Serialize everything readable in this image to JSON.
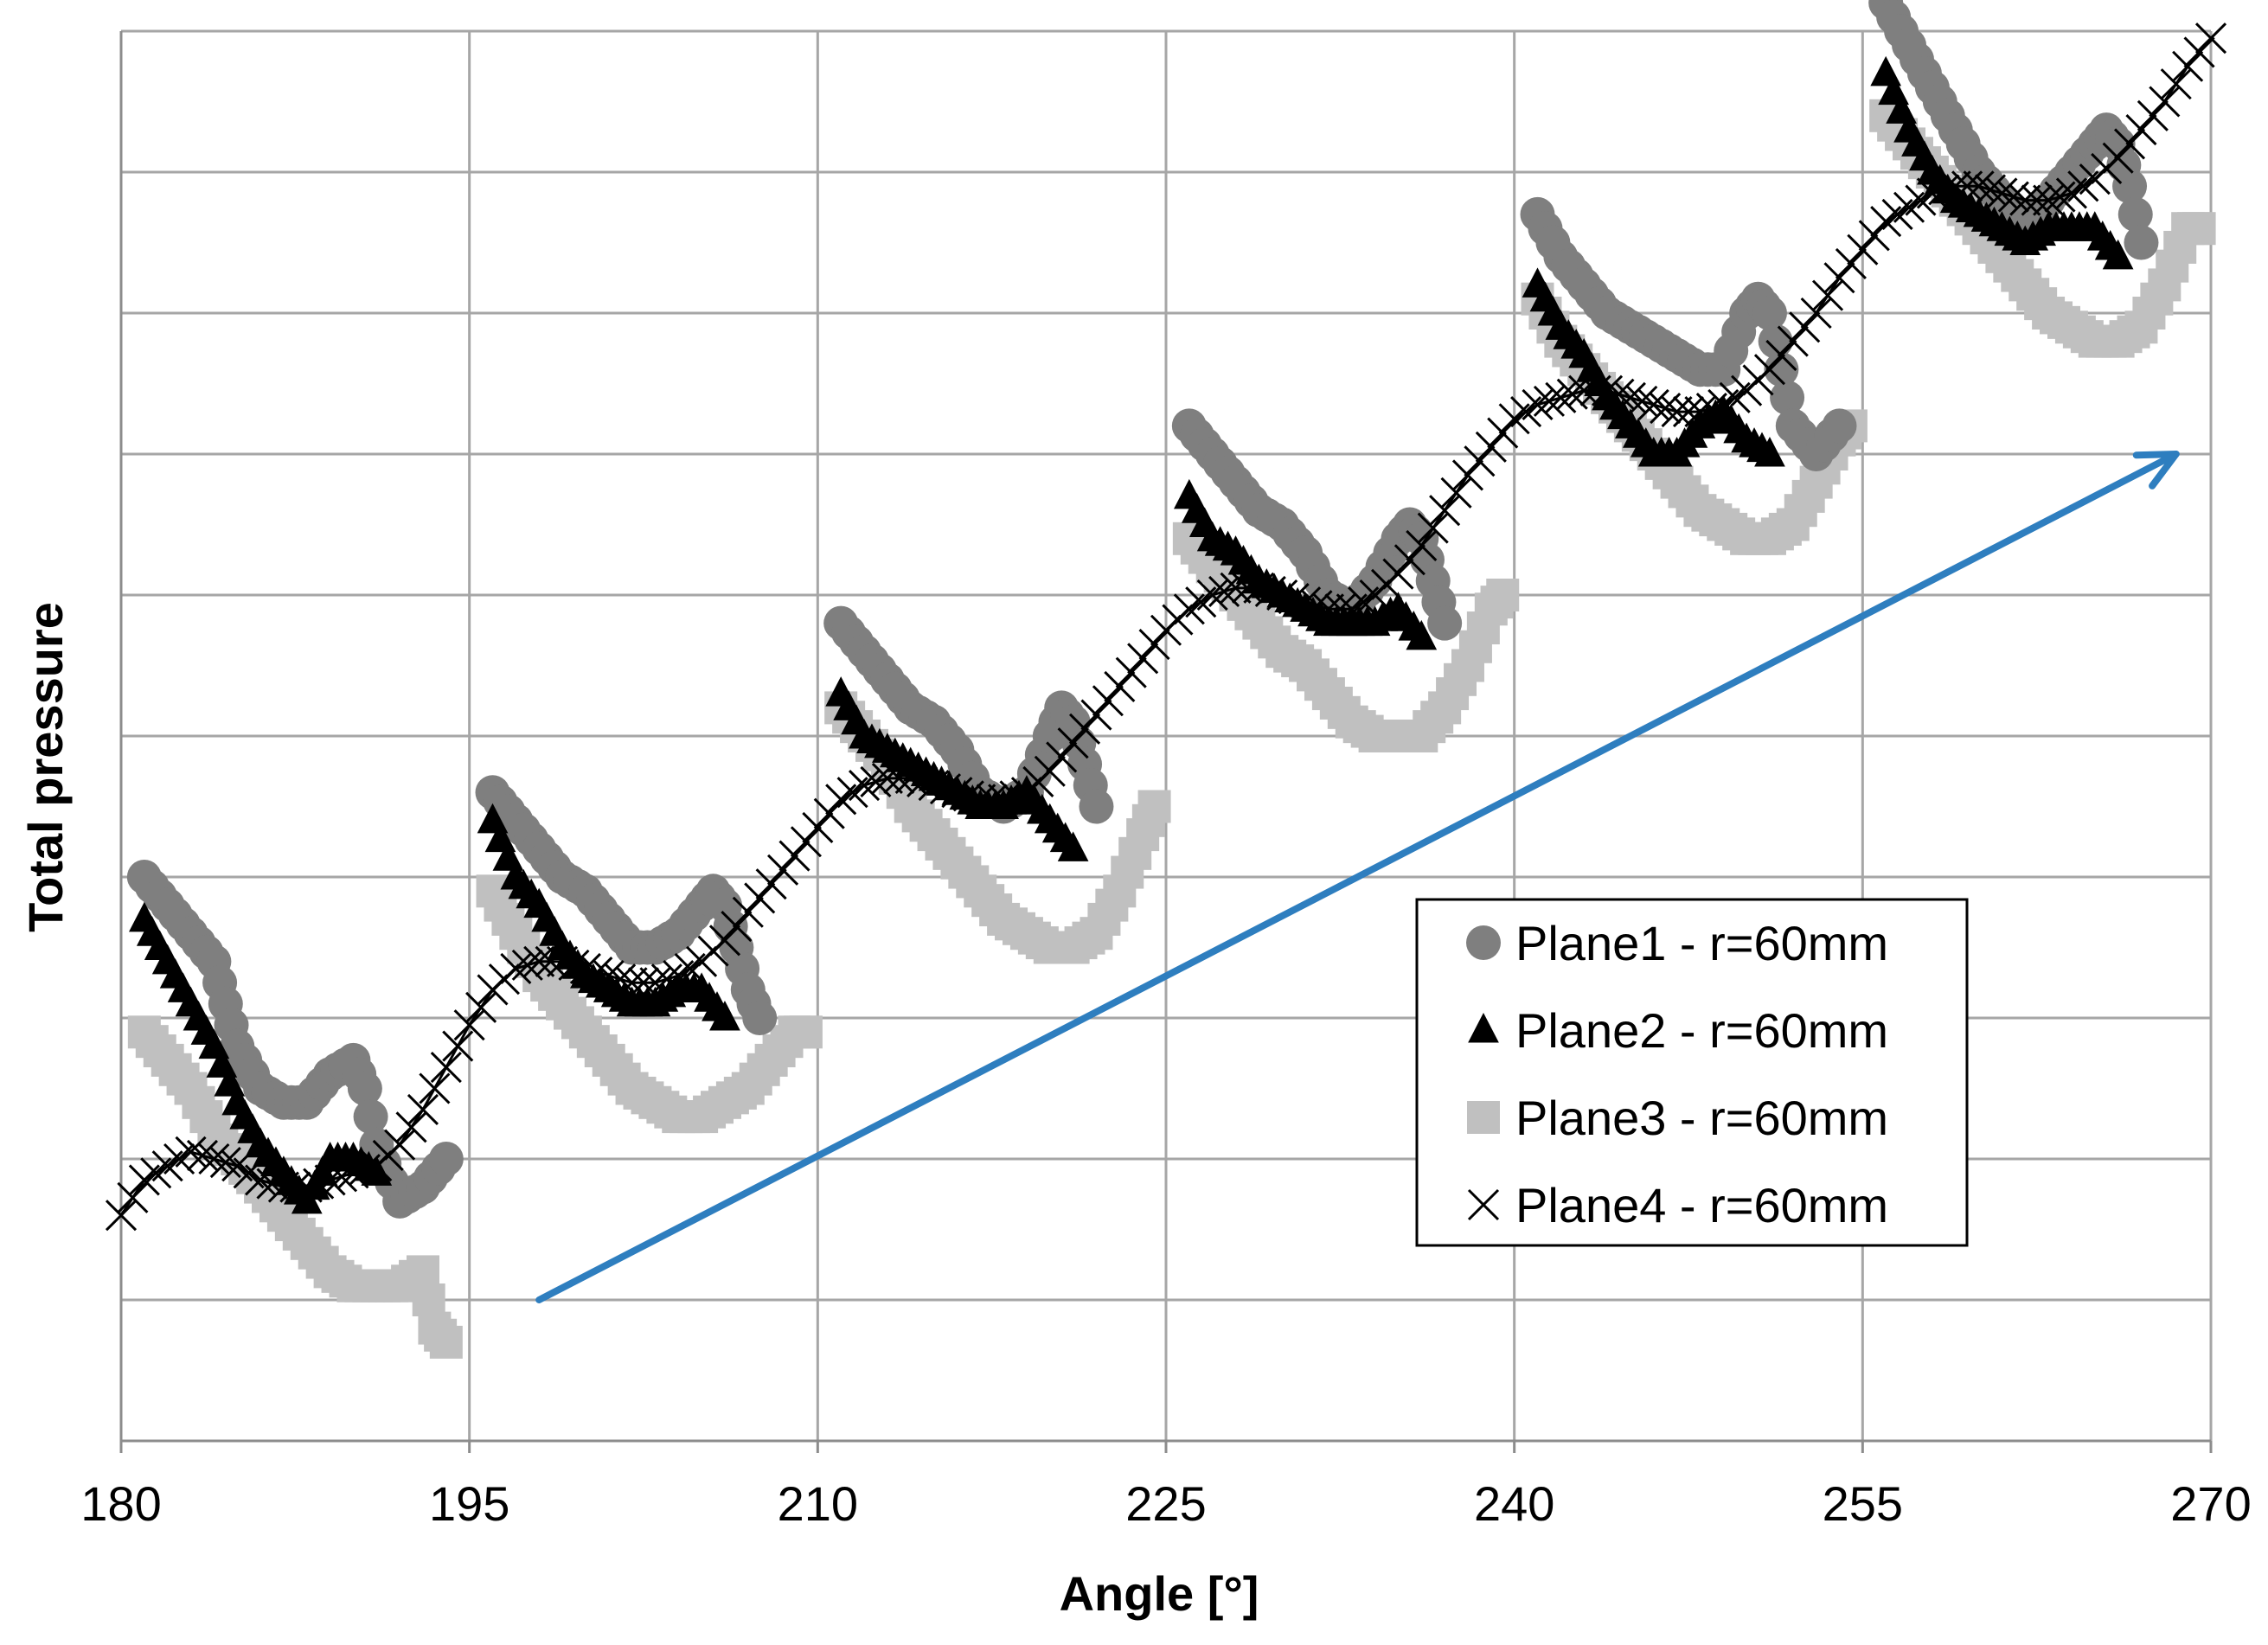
{
  "chart_data": {
    "type": "scatter",
    "title": "",
    "xlabel": "Angle [°]",
    "ylabel": "Total pressure",
    "xlim": [
      180,
      270
    ],
    "ylim": [
      0,
      10
    ],
    "xticks": [
      180,
      195,
      210,
      225,
      240,
      255,
      270
    ],
    "grid": true,
    "legend_position": "lower-right",
    "series": [
      {
        "name": "Plane1 - r=60mm",
        "marker": "circle",
        "color": "#7f7f7f",
        "segments": [
          {
            "x": [
              181,
              182,
              183,
              184,
              184.5,
              185,
              186,
              187,
              188,
              189,
              190,
              190.5,
              191,
              192,
              193,
              194
            ],
            "y": [
              4.0,
              3.8,
              3.6,
              3.4,
              3.1,
              2.8,
              2.5,
              2.4,
              2.4,
              2.6,
              2.7,
              2.5,
              2.1,
              1.7,
              1.8,
              2.0
            ]
          },
          {
            "x": [
              196,
              197,
              198,
              199,
              200,
              201,
              202,
              203,
              204,
              205,
              205.5,
              206,
              206.5,
              207,
              207.5
            ],
            "y": [
              4.6,
              4.4,
              4.2,
              4.0,
              3.9,
              3.7,
              3.5,
              3.5,
              3.6,
              3.8,
              3.9,
              3.8,
              3.5,
              3.2,
              3.0
            ]
          },
          {
            "x": [
              211,
              212,
              213,
              214,
              215,
              216,
              217,
              218,
              219,
              220,
              220.5,
              221,
              221.5,
              222
            ],
            "y": [
              5.8,
              5.6,
              5.4,
              5.2,
              5.1,
              4.9,
              4.6,
              4.5,
              4.6,
              5.0,
              5.2,
              5.1,
              4.8,
              4.5
            ]
          },
          {
            "x": [
              226,
              227,
              228,
              229,
              230,
              231,
              232,
              233,
              234,
              235,
              235.5,
              236,
              236.5,
              237
            ],
            "y": [
              7.2,
              7.0,
              6.8,
              6.6,
              6.5,
              6.3,
              6.0,
              5.9,
              6.1,
              6.4,
              6.5,
              6.4,
              6.1,
              5.8
            ]
          },
          {
            "x": [
              241,
              242,
              243,
              244,
              245,
              246,
              247,
              248,
              249,
              250,
              250.5,
              251,
              251.5,
              252,
              253,
              254
            ],
            "y": [
              8.7,
              8.4,
              8.2,
              8.0,
              7.9,
              7.8,
              7.7,
              7.6,
              7.6,
              8.0,
              8.1,
              8.0,
              7.6,
              7.2,
              7.0,
              7.2
            ]
          },
          {
            "x": [
              256,
              257,
              258,
              259,
              260,
              261,
              262,
              263,
              264,
              265,
              265.5,
              266,
              266.5,
              267
            ],
            "y": [
              10.2,
              9.9,
              9.6,
              9.3,
              9.0,
              8.8,
              8.6,
              8.8,
              9.0,
              9.2,
              9.3,
              9.2,
              8.9,
              8.5
            ]
          }
        ]
      },
      {
        "name": "Plane2 - r=60mm",
        "marker": "triangle",
        "color": "#000000",
        "segments": [
          {
            "x": [
              181,
              182,
              183,
              184,
              185,
              186,
              187,
              188,
              189,
              190,
              191
            ],
            "y": [
              3.7,
              3.4,
              3.1,
              2.8,
              2.4,
              2.1,
              1.9,
              1.7,
              2.0,
              2.0,
              1.9
            ]
          },
          {
            "x": [
              196,
              197,
              198,
              199,
              200,
              201,
              202,
              203,
              204,
              205,
              206
            ],
            "y": [
              4.4,
              4.0,
              3.8,
              3.5,
              3.3,
              3.2,
              3.1,
              3.1,
              3.2,
              3.2,
              3.0
            ]
          },
          {
            "x": [
              211,
              212,
              213,
              214,
              215,
              216,
              217,
              218,
              219,
              220,
              221
            ],
            "y": [
              5.3,
              5.0,
              4.9,
              4.8,
              4.7,
              4.6,
              4.5,
              4.5,
              4.6,
              4.4,
              4.2
            ]
          },
          {
            "x": [
              226,
              227,
              228,
              229,
              230,
              231,
              232,
              233,
              234,
              235,
              236
            ],
            "y": [
              6.7,
              6.4,
              6.3,
              6.1,
              6.0,
              5.9,
              5.8,
              5.8,
              5.8,
              5.9,
              5.7
            ]
          },
          {
            "x": [
              241,
              242,
              243,
              244,
              245,
              246,
              247,
              248,
              249,
              250,
              251
            ],
            "y": [
              8.2,
              7.9,
              7.7,
              7.4,
              7.2,
              7.0,
              7.0,
              7.2,
              7.3,
              7.1,
              7.0
            ]
          },
          {
            "x": [
              256,
              257,
              258,
              259,
              260,
              261,
              262,
              263,
              264,
              265,
              266
            ],
            "y": [
              9.7,
              9.3,
              9.0,
              8.8,
              8.7,
              8.6,
              8.5,
              8.6,
              8.6,
              8.6,
              8.4
            ]
          }
        ]
      },
      {
        "name": "Plane3 - r=60mm",
        "marker": "square",
        "color": "#c0c0c0",
        "segments": [
          {
            "x": [
              181,
              182,
              183,
              184,
              185,
              186,
              187,
              188,
              189,
              190,
              191,
              192,
              193,
              193.5,
              194
            ],
            "y": [
              2.9,
              2.7,
              2.5,
              2.2,
              2.0,
              1.8,
              1.6,
              1.4,
              1.2,
              1.1,
              1.1,
              1.1,
              1.2,
              0.8,
              0.7
            ]
          },
          {
            "x": [
              196,
              197,
              198,
              199,
              200,
              201,
              202,
              203,
              204,
              205,
              206,
              207,
              208,
              209,
              209.5
            ],
            "y": [
              3.9,
              3.6,
              3.3,
              3.1,
              2.9,
              2.7,
              2.5,
              2.4,
              2.3,
              2.3,
              2.4,
              2.5,
              2.7,
              2.9,
              2.9
            ]
          },
          {
            "x": [
              211,
              212,
              213,
              214,
              215,
              216,
              217,
              218,
              219,
              220,
              221,
              222,
              223,
              224,
              224.5
            ],
            "y": [
              5.2,
              5.0,
              4.8,
              4.5,
              4.3,
              4.1,
              3.9,
              3.7,
              3.6,
              3.5,
              3.5,
              3.6,
              3.9,
              4.3,
              4.5
            ]
          },
          {
            "x": [
              226,
              227,
              228,
              229,
              230,
              231,
              232,
              233,
              234,
              235,
              236,
              237,
              238,
              239,
              239.5
            ],
            "y": [
              6.4,
              6.2,
              6.0,
              5.8,
              5.6,
              5.5,
              5.3,
              5.1,
              5.0,
              5.0,
              5.0,
              5.2,
              5.5,
              5.9,
              6.0
            ]
          },
          {
            "x": [
              241,
              242,
              243,
              244,
              245,
              246,
              247,
              248,
              249,
              250,
              251,
              252,
              253,
              254,
              254.5
            ],
            "y": [
              8.1,
              7.8,
              7.6,
              7.4,
              7.2,
              7.0,
              6.8,
              6.6,
              6.5,
              6.4,
              6.4,
              6.5,
              6.8,
              7.1,
              7.2
            ]
          },
          {
            "x": [
              256,
              257,
              258,
              259,
              260,
              261,
              262,
              263,
              264,
              265,
              266,
              267,
              268,
              269,
              269.5
            ],
            "y": [
              9.4,
              9.2,
              9.0,
              8.8,
              8.6,
              8.4,
              8.2,
              8.0,
              7.9,
              7.8,
              7.8,
              7.9,
              8.2,
              8.6,
              8.6
            ]
          }
        ]
      },
      {
        "name": "Plane4 - r=60mm",
        "marker": "x",
        "color": "#000000",
        "segments": [
          {
            "x": [
              180,
              181,
              182,
              183,
              184,
              185,
              186,
              187,
              188,
              189,
              190,
              191,
              192,
              193,
              194,
              195,
              196,
              197,
              198,
              199,
              200,
              201,
              202,
              203,
              204,
              205,
              206,
              207,
              208,
              209,
              210,
              211,
              212,
              213,
              214,
              215,
              216,
              217,
              218,
              219,
              220,
              221,
              222,
              223,
              224,
              225,
              226,
              227,
              228,
              229,
              230,
              231,
              232,
              233,
              234,
              235,
              236,
              237,
              238,
              239,
              240,
              241,
              242,
              243,
              244,
              245,
              246,
              247,
              248,
              249,
              250,
              251,
              252,
              253,
              254,
              255,
              256,
              257,
              258,
              259,
              260,
              261,
              262,
              263,
              264,
              265,
              266,
              267,
              268,
              269,
              270
            ],
            "y": [
              1.6,
              1.85,
              1.95,
              2.05,
              2.0,
              1.95,
              1.85,
              1.8,
              1.8,
              1.85,
              1.9,
              1.95,
              2.1,
              2.35,
              2.65,
              2.95,
              3.2,
              3.35,
              3.4,
              3.4,
              3.35,
              3.3,
              3.25,
              3.25,
              3.3,
              3.4,
              3.55,
              3.75,
              3.95,
              4.15,
              4.35,
              4.55,
              4.65,
              4.7,
              4.7,
              4.65,
              4.6,
              4.55,
              4.55,
              4.6,
              4.75,
              4.95,
              5.15,
              5.35,
              5.55,
              5.75,
              5.9,
              6.0,
              6.05,
              6.05,
              6.0,
              5.95,
              5.9,
              5.9,
              6.0,
              6.15,
              6.35,
              6.6,
              6.85,
              7.05,
              7.25,
              7.35,
              7.4,
              7.45,
              7.45,
              7.4,
              7.35,
              7.3,
              7.3,
              7.35,
              7.45,
              7.6,
              7.8,
              8.0,
              8.25,
              8.45,
              8.65,
              8.75,
              8.85,
              8.9,
              8.9,
              8.85,
              8.8,
              8.8,
              8.85,
              8.95,
              9.1,
              9.3,
              9.5,
              9.75,
              9.95
            ]
          }
        ]
      }
    ],
    "annotations": [
      {
        "type": "arrow",
        "color": "#2e7ebf",
        "from": [
          198,
          1.0
        ],
        "to": [
          268.5,
          7.0
        ]
      }
    ]
  }
}
